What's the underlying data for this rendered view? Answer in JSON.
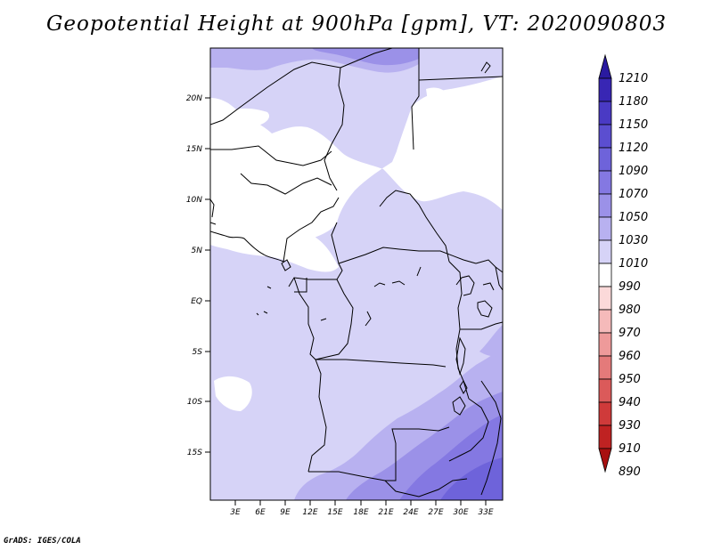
{
  "title": "Geopotential Height at 900hPa [gpm], VT: 2020090803",
  "credit": "GrADS: IGES/COLA",
  "map": {
    "lat_ticks": [
      "20N",
      "15N",
      "10N",
      "5N",
      "EQ",
      "5S",
      "10S",
      "15S"
    ],
    "lon_ticks": [
      "3E",
      "6E",
      "9E",
      "12E",
      "15E",
      "18E",
      "21E",
      "24E",
      "27E",
      "30E",
      "33E"
    ]
  },
  "colorbar": {
    "levels": [
      "1210",
      "1180",
      "1150",
      "1120",
      "1090",
      "1070",
      "1050",
      "1030",
      "1010",
      "990",
      "980",
      "970",
      "960",
      "950",
      "940",
      "930",
      "910",
      "890"
    ],
    "colors": [
      "#2a1aa0",
      "#3826b4",
      "#4a3ac4",
      "#5b4ed0",
      "#6e63da",
      "#8478e2",
      "#9b91e8",
      "#b8b1f0",
      "#d6d3f7",
      "#ffffff",
      "#fbd9d9",
      "#f5baba",
      "#ee9a9a",
      "#e47a7a",
      "#db5a5a",
      "#cf3a3a",
      "#bf2222",
      "#a81010"
    ]
  }
}
